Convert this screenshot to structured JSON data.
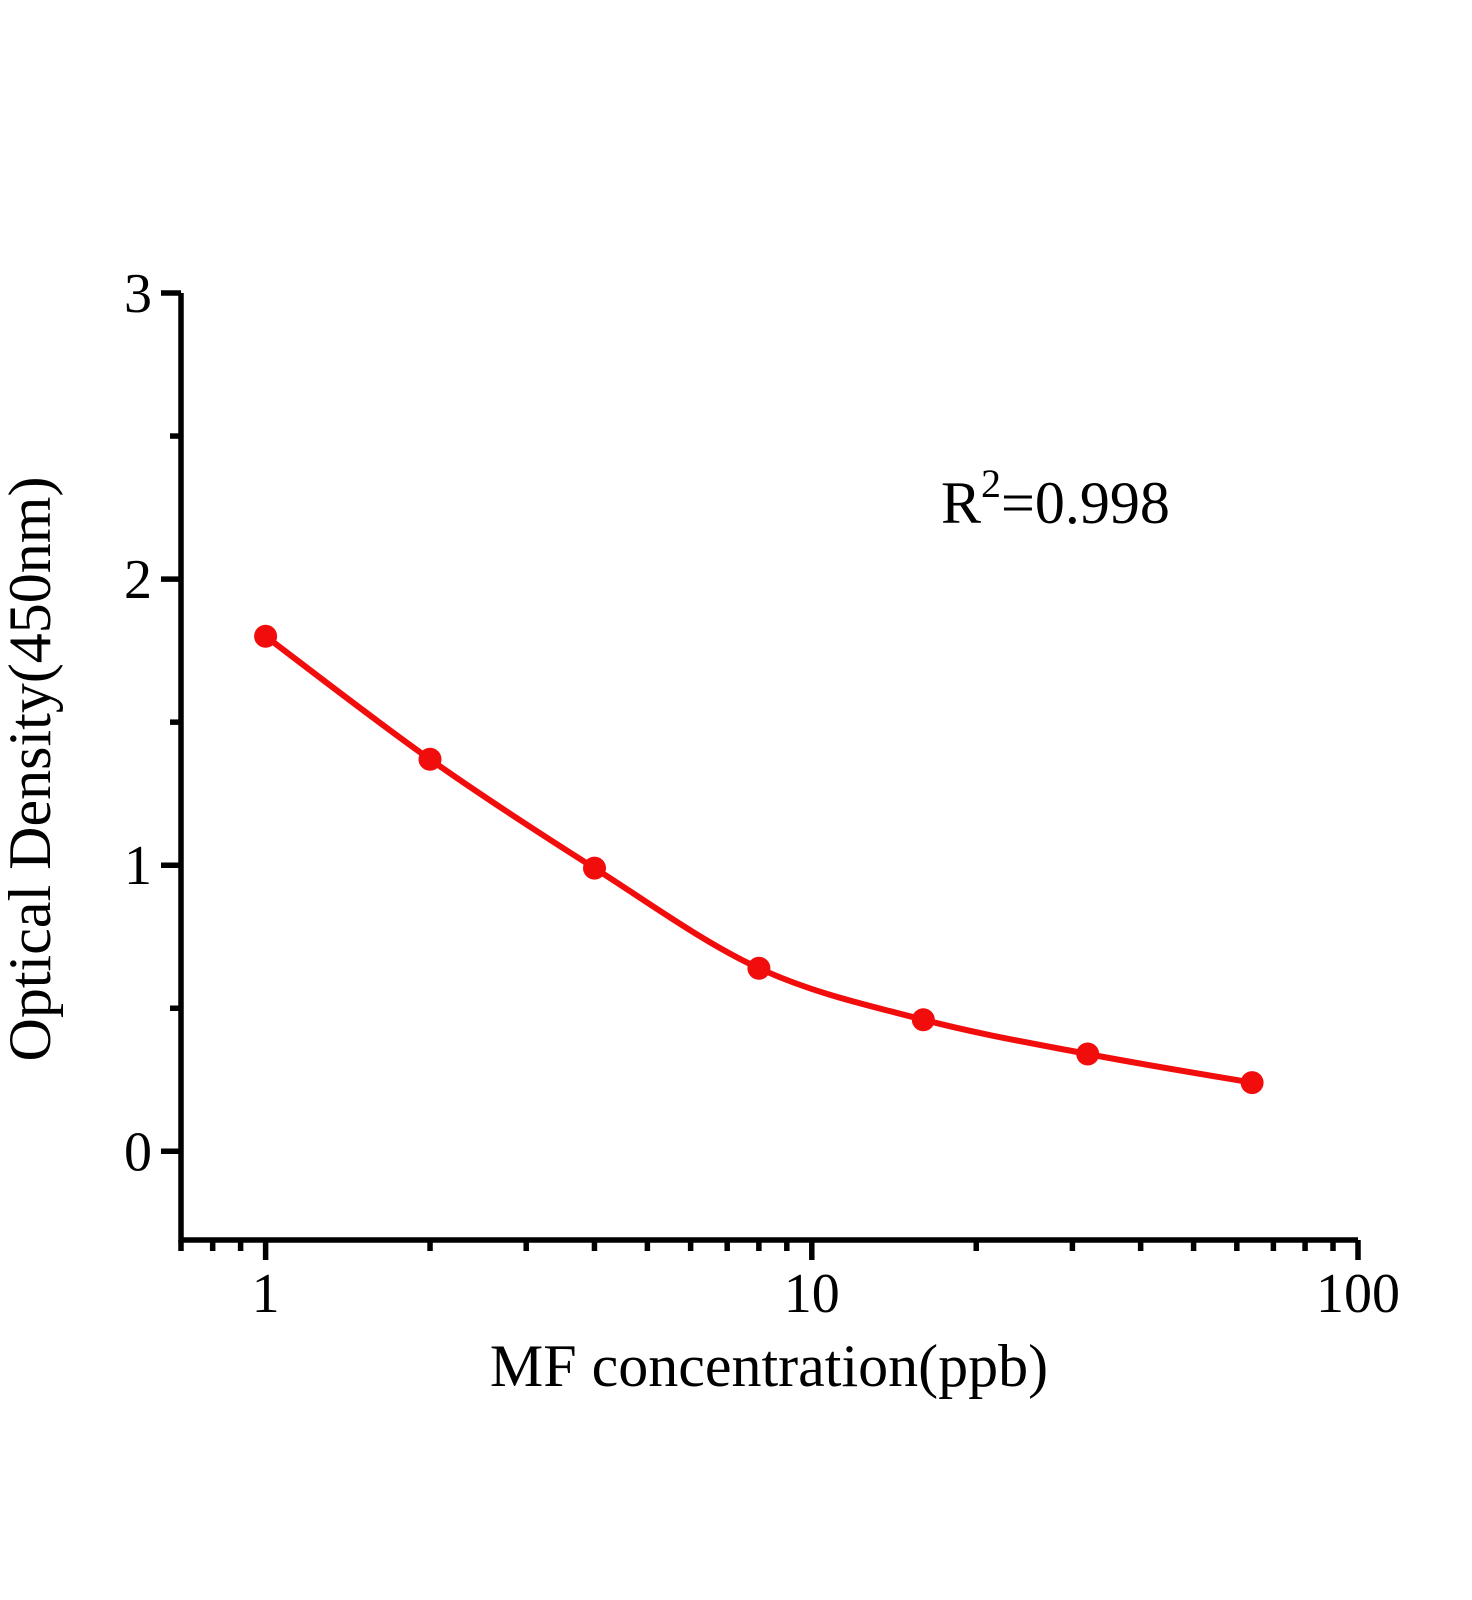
{
  "chart_data": {
    "type": "scatter",
    "subtype": "standard-curve-with-fitted-line",
    "title": "",
    "xlabel": "MF concentration(ppb)",
    "ylabel": "Optical Density(450nm)",
    "annotation": {
      "base": "R",
      "sup": "2",
      "rest": "=0.998",
      "full_text": "R2=0.998"
    },
    "x_scale": "log10",
    "y_scale": "linear",
    "xlim": [
      0.7,
      100
    ],
    "ylim": [
      -0.31,
      3
    ],
    "x": [
      1,
      2,
      4,
      8,
      16,
      32,
      64
    ],
    "y": [
      1.8,
      1.37,
      0.99,
      0.64,
      0.46,
      0.34,
      0.24
    ],
    "x_major_ticks": [
      {
        "v": 1,
        "label": "1"
      },
      {
        "v": 10,
        "label": "10"
      },
      {
        "v": 100,
        "label": "100"
      }
    ],
    "x_minor_ticks": [
      0.7,
      0.8,
      0.9,
      2,
      3,
      4,
      5,
      6,
      7,
      8,
      9,
      20,
      30,
      40,
      50,
      60,
      70,
      80,
      90
    ],
    "y_major_ticks": [
      {
        "v": 0,
        "label": "0"
      },
      {
        "v": 1,
        "label": "1"
      },
      {
        "v": 2,
        "label": "2"
      },
      {
        "v": 3,
        "label": "3"
      }
    ],
    "y_minor_ticks": [
      0.5,
      1.5,
      2.5
    ],
    "grid": "off",
    "legend": "none",
    "colors": {
      "curve": "#f20d0d",
      "marker": "#f20d0d",
      "axis": "#000000",
      "text": "#000000",
      "background": "#ffffff"
    }
  }
}
